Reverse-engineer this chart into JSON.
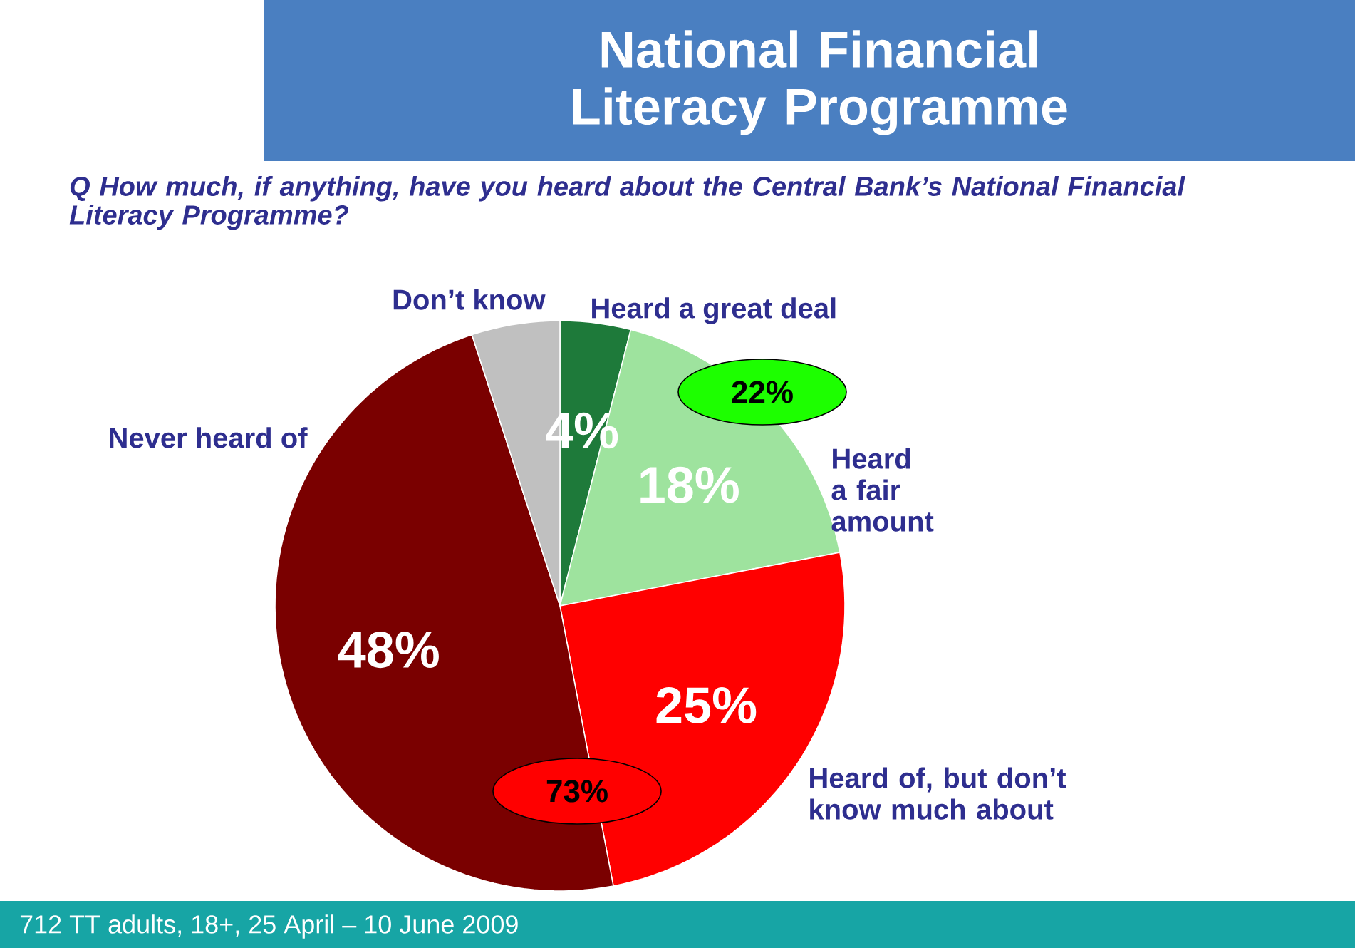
{
  "chart_data": {
    "type": "pie",
    "title": "National Financial Literacy Programme",
    "subtitle": "Q  How much, if anything, have you heard about the Central Bank’s National Financial Literacy Programme?",
    "categories": [
      "Heard a great deal",
      "Heard a fair amount",
      "Heard of, but don’t know much about",
      "Never heard of",
      "Don’t know"
    ],
    "values": [
      4,
      18,
      25,
      48,
      5
    ],
    "colors": [
      "#1e7a3a",
      "#9ee39e",
      "#ff0000",
      "#7a0000",
      "#c0c0c0"
    ],
    "value_labels": [
      "4%",
      "18%",
      "25%",
      "48%",
      null
    ],
    "annotations": [
      "22%",
      "73%",
      "712 TT adults, 18+, 25 April – 10 June 2009"
    ]
  }
}
